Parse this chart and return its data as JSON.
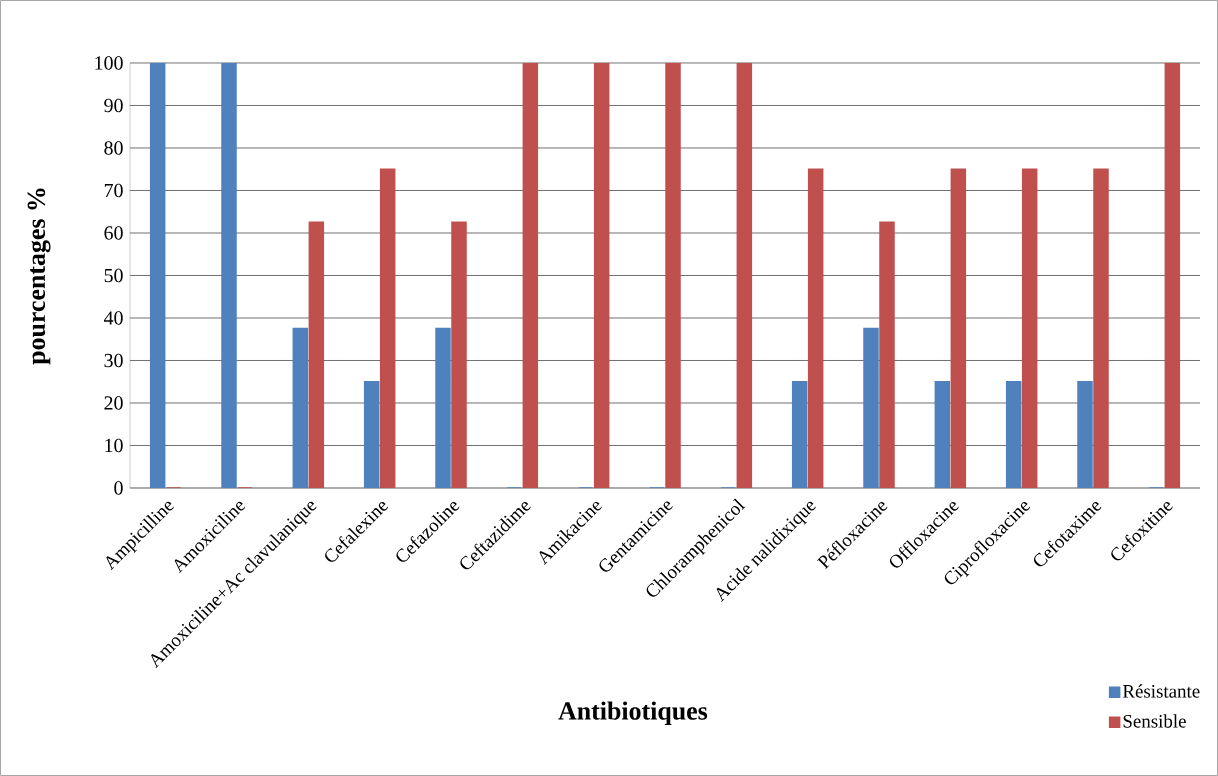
{
  "chart_data": {
    "type": "bar",
    "xlabel": "Antibiotiques",
    "ylabel": "pourcentages %",
    "categories": [
      "Ampicilline",
      "Amoxiciline",
      "Amoxiciline+Ac clavulanique",
      "Cefalexine",
      "Cefazoline",
      "Ceftazidime",
      "Amikacine",
      "Gentamicine",
      "Chloramphenicol",
      "Acide nalidixique",
      "Péfloxacine",
      "Offloxacine",
      "Ciprofloxacine",
      "Cefotaxime",
      "Cefoxitine"
    ],
    "series": [
      {
        "name": "Résistante",
        "color": "#4f81bd",
        "values": [
          100,
          100,
          37.5,
          25,
          37.5,
          0,
          0,
          0,
          0,
          25,
          37.5,
          25,
          25,
          25,
          0
        ]
      },
      {
        "name": "Sensible",
        "color": "#c0504d",
        "values": [
          0,
          0,
          62.5,
          75,
          62.5,
          100,
          100,
          100,
          100,
          75,
          62.5,
          75,
          75,
          75,
          100
        ]
      }
    ],
    "ylim": [
      0,
      100
    ],
    "yticks": [
      0,
      10,
      20,
      30,
      40,
      50,
      60,
      70,
      80,
      90,
      100
    ],
    "grid": "y",
    "legend": "bottom right"
  }
}
